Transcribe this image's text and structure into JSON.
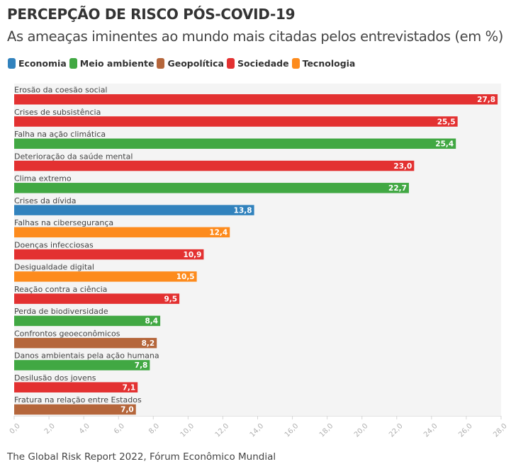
{
  "header": {
    "title": "PERCEPÇÃO DE RISCO PÓS-COVID-19",
    "subtitle": "As ameaças iminentes ao mundo mais citadas pelos entrevistados (em %)"
  },
  "legend": [
    {
      "label": "Economia",
      "color": "#3182bd"
    },
    {
      "label": "Meio ambiente",
      "color": "#41a843"
    },
    {
      "label": "Geopolítica",
      "color": "#b5663b"
    },
    {
      "label": "Sociedade",
      "color": "#e33131"
    },
    {
      "label": "Tecnologia",
      "color": "#fd8b1d"
    }
  ],
  "footer": {
    "source": "The Global Risk Report 2022, Fórum Econômico Mundial"
  },
  "chart_data": {
    "type": "bar",
    "orientation": "horizontal",
    "title": "PERCEPÇÃO DE RISCO PÓS-COVID-19",
    "subtitle": "As ameaças iminentes ao mundo mais citadas pelos entrevistados (em %)",
    "xlabel": "",
    "ylabel": "",
    "xlim": [
      0,
      28
    ],
    "x_ticks": [
      "0,0",
      "2,0",
      "4,0",
      "6,0",
      "8,0",
      "10,0",
      "12,0",
      "14,0",
      "16,0",
      "18,0",
      "20,0",
      "22,0",
      "24,0",
      "26,0",
      "28,0"
    ],
    "x_tick_values": [
      0,
      2,
      4,
      6,
      8,
      10,
      12,
      14,
      16,
      18,
      20,
      22,
      24,
      26,
      28
    ],
    "grid": false,
    "legend_position": "top-left",
    "categories": [
      "Erosão da coesão social",
      "Crises de subsistência",
      "Falha na ação climática",
      "Deterioração da saúde mental",
      "Clima extremo",
      "Crises da dívida",
      "Falhas na cibersegurança",
      "Doenças infecciosas",
      "Desigualdade digital",
      "Reação contra a ciência",
      "Perda de biodiversidade",
      "Confrontos geoeconômicos",
      "Danos ambientais pela ação humana",
      "Desilusão dos jovens",
      "Fratura na relação entre Estados"
    ],
    "values": [
      27.8,
      25.5,
      25.4,
      23.0,
      22.7,
      13.8,
      12.4,
      10.9,
      10.5,
      9.5,
      8.4,
      8.2,
      7.8,
      7.1,
      7.0
    ],
    "value_labels": [
      "27,8",
      "25,5",
      "25,4",
      "23,0",
      "22,7",
      "13,8",
      "12,4",
      "10,9",
      "10,5",
      "9,5",
      "8,4",
      "8,2",
      "7,8",
      "7,1",
      "7,0"
    ],
    "groups": [
      "Sociedade",
      "Sociedade",
      "Meio ambiente",
      "Sociedade",
      "Meio ambiente",
      "Economia",
      "Tecnologia",
      "Sociedade",
      "Tecnologia",
      "Sociedade",
      "Meio ambiente",
      "Geopolítica",
      "Meio ambiente",
      "Sociedade",
      "Geopolítica"
    ]
  }
}
